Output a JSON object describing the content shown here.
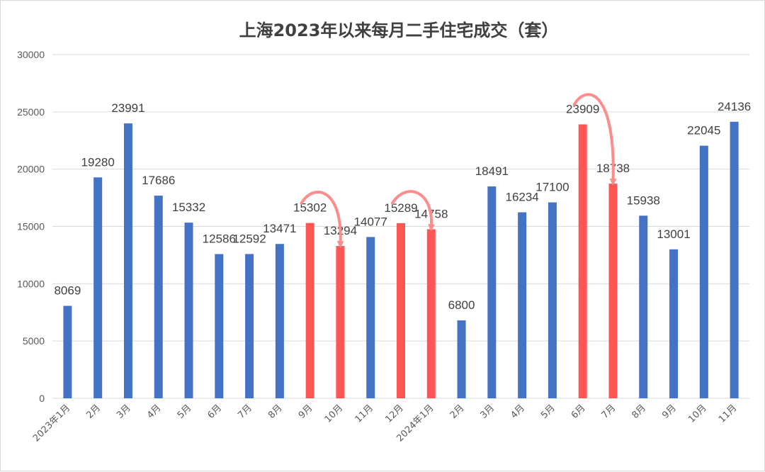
{
  "chart_data": {
    "type": "bar",
    "title": "上海2023年以来每月二手住宅成交（套）",
    "xlabel": "",
    "ylabel": "",
    "ylim": [
      0,
      30000
    ],
    "yticks": [
      0,
      5000,
      10000,
      15000,
      20000,
      25000,
      30000
    ],
    "grid": true,
    "categories": [
      "2023年1月",
      "2月",
      "3月",
      "4月",
      "5月",
      "6月",
      "7月",
      "8月",
      "9月",
      "10月",
      "11月",
      "12月",
      "2024年1月",
      "2月",
      "3月",
      "4月",
      "5月",
      "6月",
      "7月",
      "8月",
      "9月",
      "10月",
      "11月"
    ],
    "values": [
      8069,
      19280,
      23991,
      17686,
      15332,
      12586,
      12592,
      13471,
      15302,
      13294,
      14077,
      15289,
      14758,
      6800,
      18491,
      16234,
      17100,
      23909,
      18738,
      15938,
      13001,
      22045,
      24136
    ],
    "highlight": [
      false,
      false,
      false,
      false,
      false,
      false,
      false,
      false,
      true,
      true,
      false,
      true,
      true,
      false,
      false,
      false,
      false,
      true,
      true,
      false,
      false,
      false,
      false
    ],
    "colors": {
      "bar": "#4472C4",
      "highlight": "#FF5555",
      "arrow": "#FF8C8C"
    },
    "annotations": [
      {
        "type": "arrow",
        "from_index": 8,
        "to_index": 9
      },
      {
        "type": "arrow",
        "from_index": 11,
        "to_index": 12
      },
      {
        "type": "arrow",
        "from_index": 17,
        "to_index": 18
      }
    ]
  }
}
